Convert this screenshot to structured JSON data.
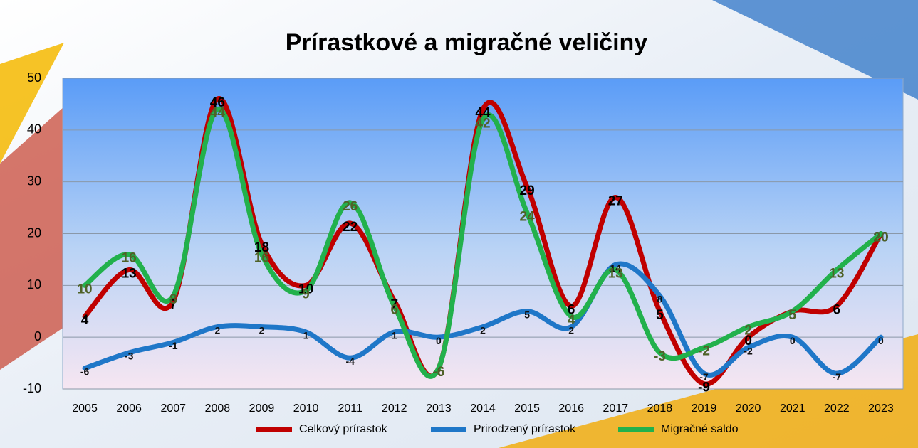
{
  "chart_data": {
    "type": "line",
    "title": "Prírastkové a migračné veličiny",
    "categories": [
      "2005",
      "2006",
      "2007",
      "2008",
      "2009",
      "2010",
      "2011",
      "2012",
      "2013",
      "2014",
      "2015",
      "2016",
      "2017",
      "2018",
      "2019",
      "2020",
      "2021",
      "2022",
      "2023"
    ],
    "series": [
      {
        "name": "Celkový prírastok",
        "color": "#c00000",
        "values": [
          4,
          13,
          7,
          46,
          18,
          10,
          22,
          7,
          -6,
          44,
          29,
          6,
          27,
          5,
          -9,
          0,
          5,
          6,
          20
        ]
      },
      {
        "name": "Prirodzený prírastok",
        "color": "#1f77c8",
        "values": [
          -6,
          -3,
          -1,
          2,
          2,
          1,
          -4,
          1,
          0,
          2,
          5,
          2,
          14,
          8,
          -7,
          -2,
          0,
          -7,
          0
        ]
      },
      {
        "name": "Migračné saldo",
        "color": "#22b14c",
        "values": [
          10,
          16,
          8,
          44,
          16,
          9,
          26,
          6,
          -6,
          42,
          24,
          4,
          13,
          -3,
          -2,
          2,
          5,
          13,
          20
        ]
      }
    ],
    "ylim": [
      -10,
      50
    ],
    "yticks": [
      -10,
      0,
      10,
      20,
      30,
      40,
      50
    ],
    "grid": true,
    "legend": "bottom"
  }
}
